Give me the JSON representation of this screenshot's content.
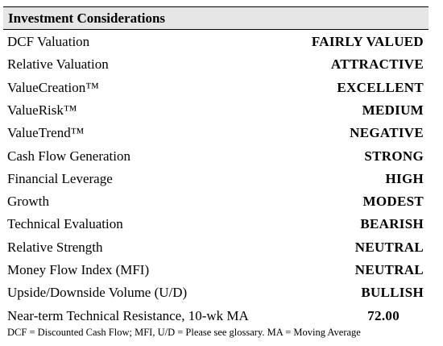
{
  "header": {
    "title": "Investment Considerations"
  },
  "table": {
    "rows": [
      [
        "DCF Valuation",
        "FAIRLY VALUED"
      ],
      [
        "Relative Valuation",
        "ATTRACTIVE"
      ],
      [
        "ValueCreation™",
        "EXCELLENT"
      ],
      [
        "ValueRisk™",
        "MEDIUM"
      ],
      [
        "ValueTrend™",
        "NEGATIVE"
      ],
      [
        "Cash Flow Generation",
        "STRONG"
      ],
      [
        "Financial Leverage",
        "HIGH"
      ],
      [
        "Growth",
        "MODEST"
      ],
      [
        "Technical Evaluation",
        "BEARISH"
      ],
      [
        "Relative Strength",
        "NEUTRAL"
      ],
      [
        "Money Flow Index (MFI)",
        "NEUTRAL"
      ],
      [
        "Upside/Downside Volume (U/D)",
        "BULLISH"
      ],
      [
        "Near-term Technical Resistance, 10-wk MA",
        "72.00"
      ]
    ]
  },
  "footnote": "DCF = Discounted Cash Flow; MFI, U/D = Please see glossary. MA = Moving Average"
}
